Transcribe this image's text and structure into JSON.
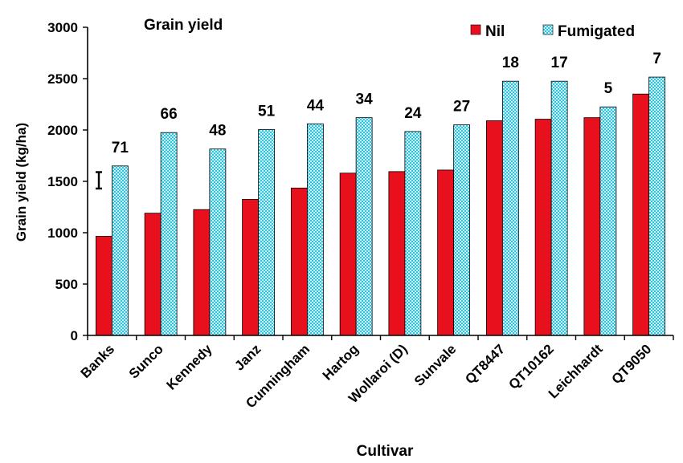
{
  "chart_data": {
    "type": "bar",
    "title": "Grain yield",
    "xlabel": "Cultivar",
    "ylabel": "Grain yield  (kg/ha)",
    "ylim": [
      0,
      3000
    ],
    "yticks": [
      "0",
      "500",
      "1000",
      "1500",
      "2000",
      "2500",
      "3000"
    ],
    "categories": [
      "Banks",
      "Sunco",
      "Kennedy",
      "Janz",
      "Cunningham",
      "Hartog",
      "Wollaroi (D)",
      "Sunvale",
      "QT8447",
      "QT10162",
      "Leichhardt",
      "QT9050"
    ],
    "series": [
      {
        "name": "Nil",
        "color": "#e8101c",
        "pattern": "solid",
        "values": [
          965,
          1190,
          1225,
          1325,
          1435,
          1580,
          1595,
          1610,
          2090,
          2105,
          2120,
          2350
        ]
      },
      {
        "name": "Fumigated",
        "color": "#7fd8e8",
        "pattern": "checkered",
        "values": [
          1650,
          1975,
          1815,
          2005,
          2060,
          2120,
          1985,
          2050,
          2475,
          2475,
          2225,
          2515
        ]
      }
    ],
    "bar_annotations": [
      "71",
      "66",
      "48",
      "51",
      "44",
      "34",
      "24",
      "27",
      "18",
      "17",
      "5",
      "7"
    ],
    "error_bar": {
      "low": 1430,
      "high": 1590
    },
    "legend_position": "top-right",
    "grid": false
  }
}
